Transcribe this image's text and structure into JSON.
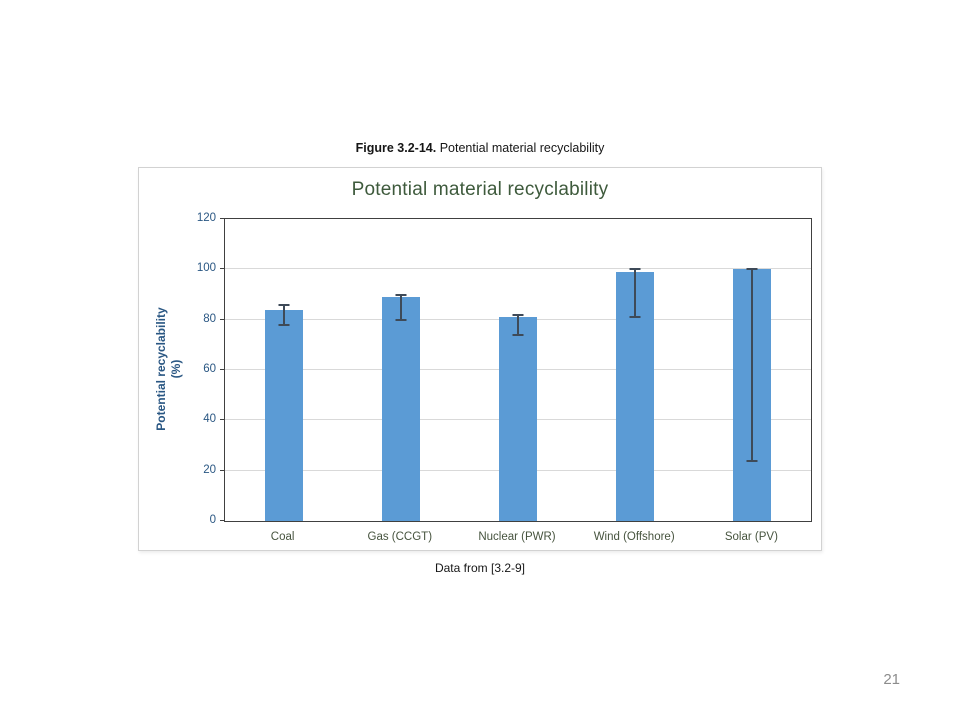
{
  "page": {
    "number": "21"
  },
  "caption": {
    "label": "Figure 3.2-14.",
    "text": " Potential material recyclability"
  },
  "footnote": {
    "text": "Data from [3.2-9]"
  },
  "chart_data": {
    "type": "bar",
    "title": "Potential material recyclability",
    "ylabel_lines": [
      "Potential recyclability",
      "(%)"
    ],
    "xlabel": "",
    "categories": [
      "Coal",
      "Gas (CCGT)",
      "Nuclear (PWR)",
      "Wind (Offshore)",
      "Solar (PV)"
    ],
    "values": [
      84,
      89,
      81,
      99,
      100
    ],
    "error_low": [
      78,
      80,
      74,
      81,
      24
    ],
    "error_high": [
      86,
      90,
      82,
      100,
      100
    ],
    "ylim": [
      0,
      120
    ],
    "ytick_step": 20,
    "grid": true,
    "legend": "none",
    "colors": {
      "bar": "#5B9BD5",
      "error_bar": "#3E4A58",
      "title": "#3E5A3C",
      "axis_text": "#2A5783",
      "category_text": "#47543F",
      "gridline": "#D9D9D9",
      "plot_border": "#404040"
    }
  }
}
